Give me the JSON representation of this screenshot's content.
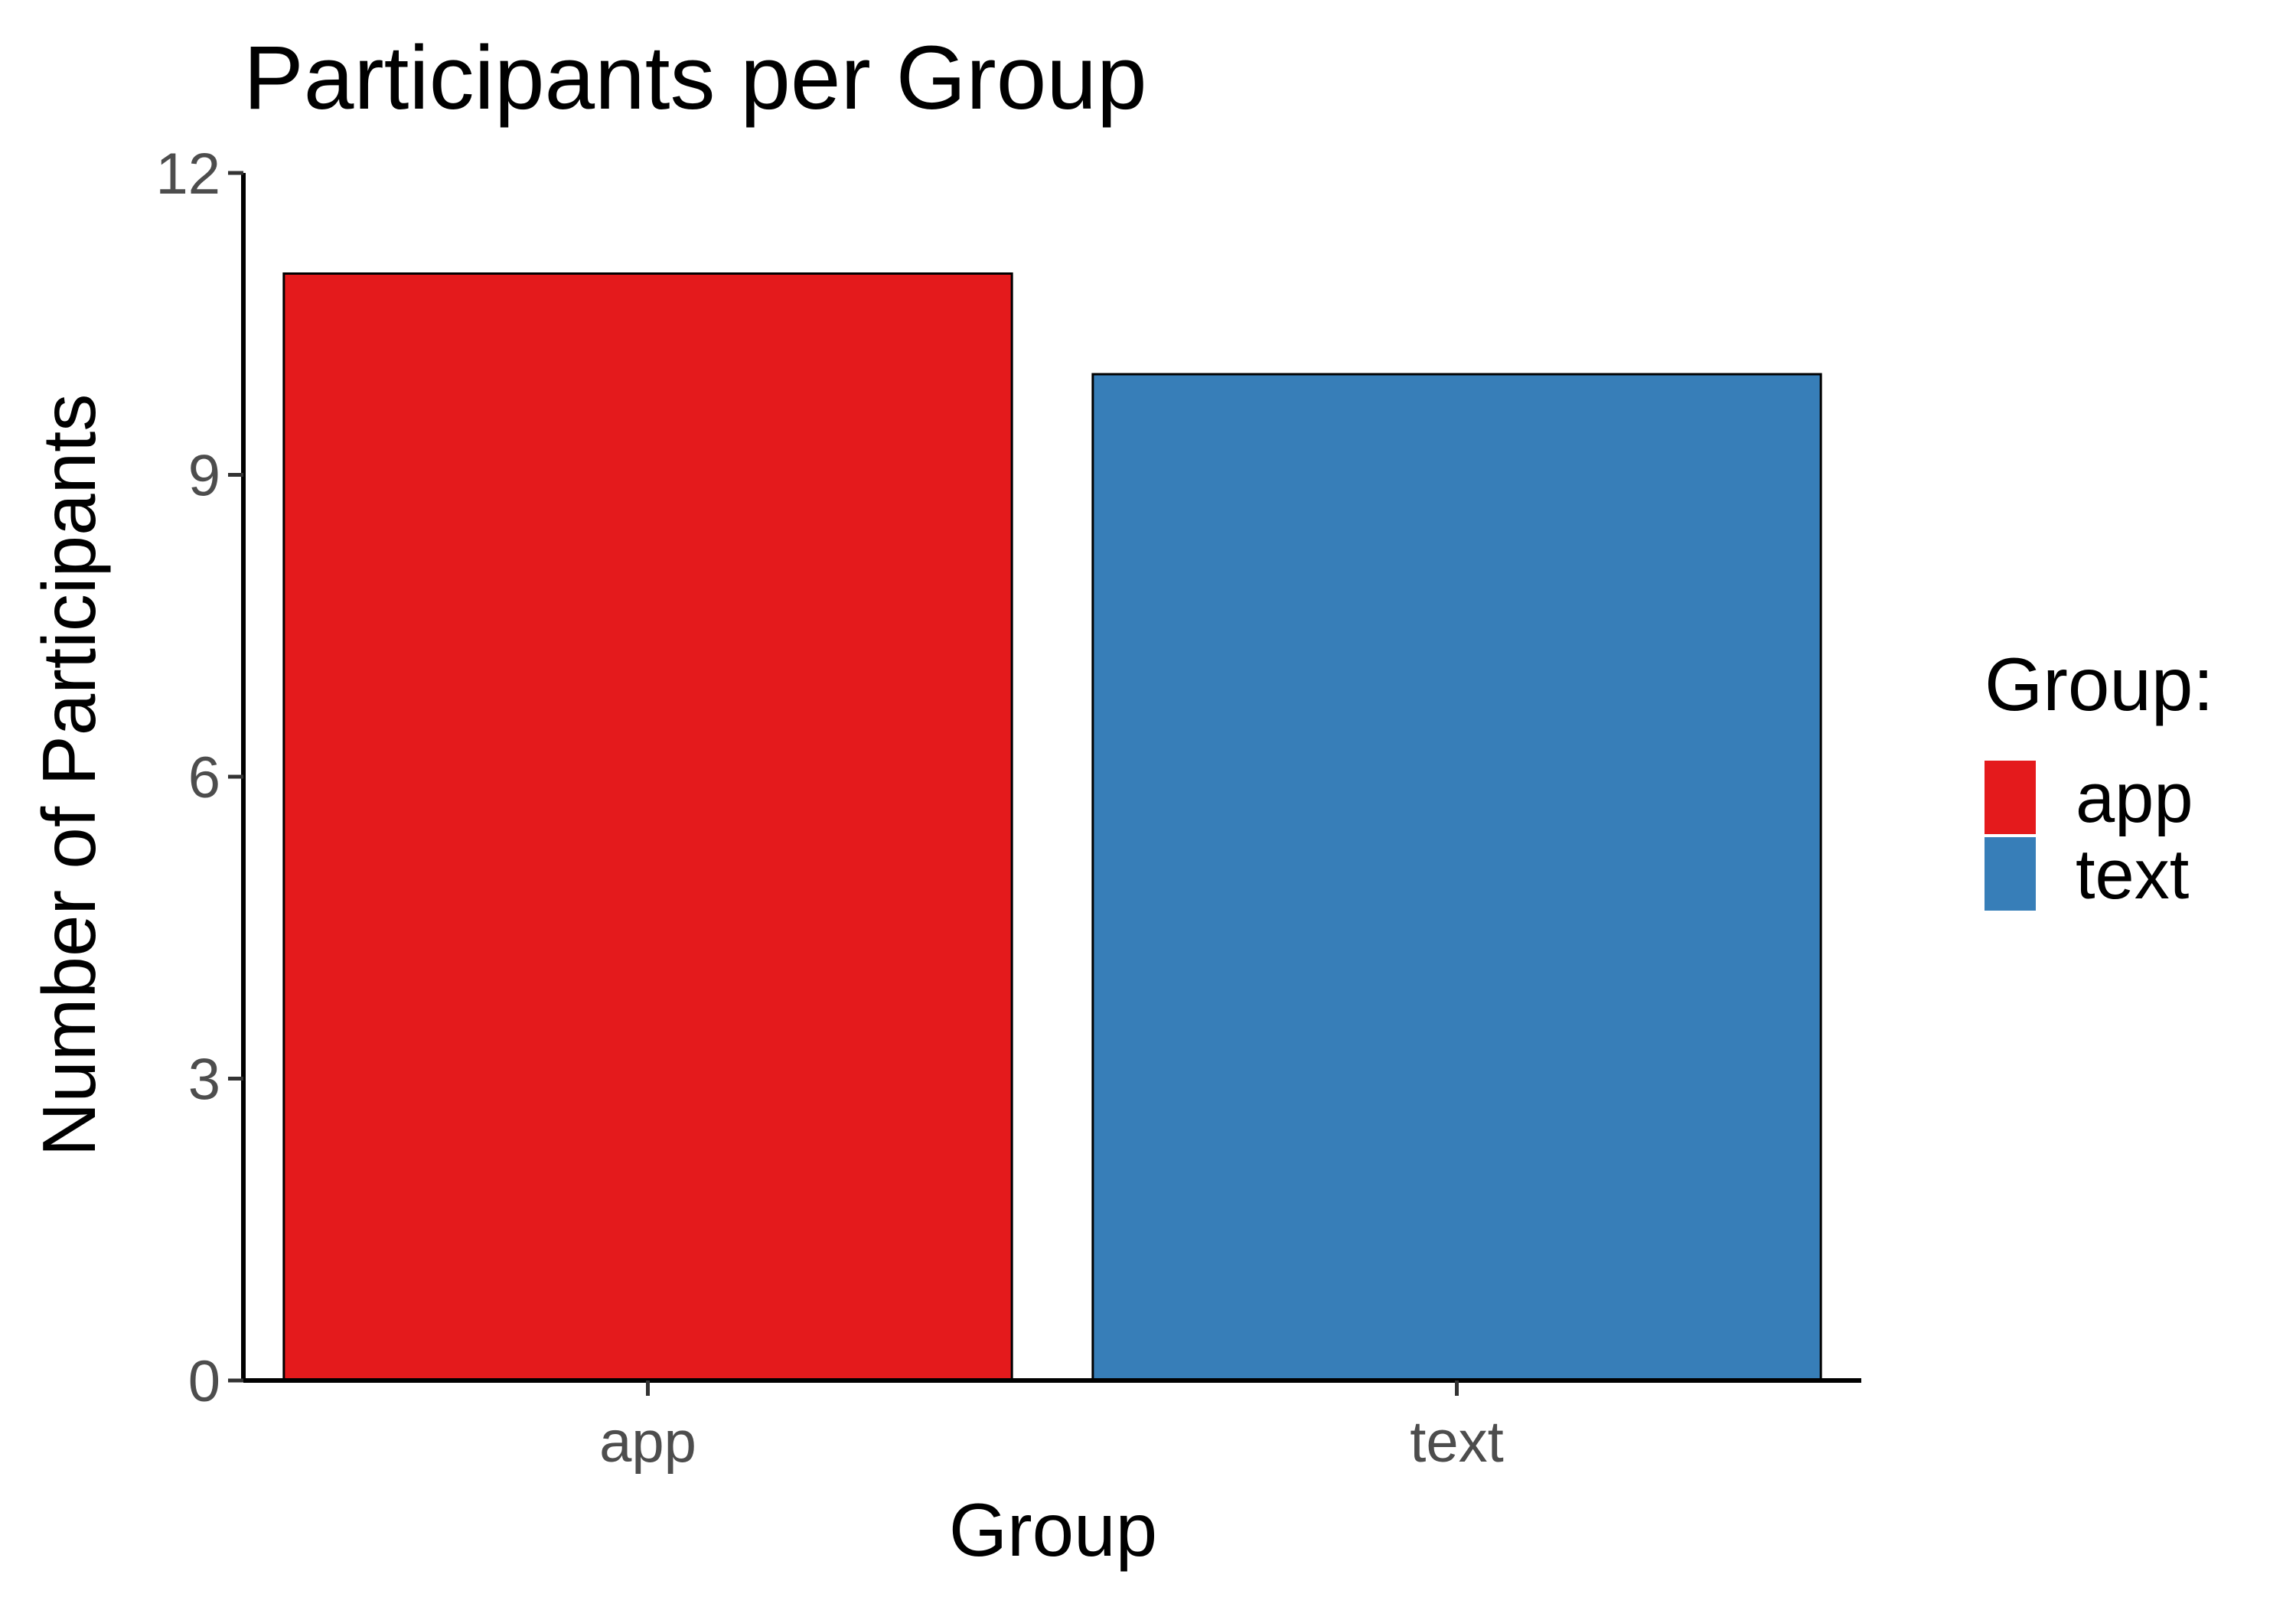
{
  "chart_data": {
    "type": "bar",
    "title": "Participants per Group",
    "xlabel": "Group",
    "ylabel": "Number of Participants",
    "categories": [
      "app",
      "text"
    ],
    "values": [
      11,
      10
    ],
    "colors": [
      "#e41a1c",
      "#377eb8"
    ],
    "ylim": [
      0,
      12
    ],
    "yticks": [
      "0",
      "3",
      "6",
      "9",
      "12"
    ],
    "grid": false,
    "legend": {
      "title": "Group:",
      "position": "right",
      "entries": [
        {
          "label": "app",
          "color": "#e41a1c"
        },
        {
          "label": "text",
          "color": "#377eb8"
        }
      ]
    }
  }
}
